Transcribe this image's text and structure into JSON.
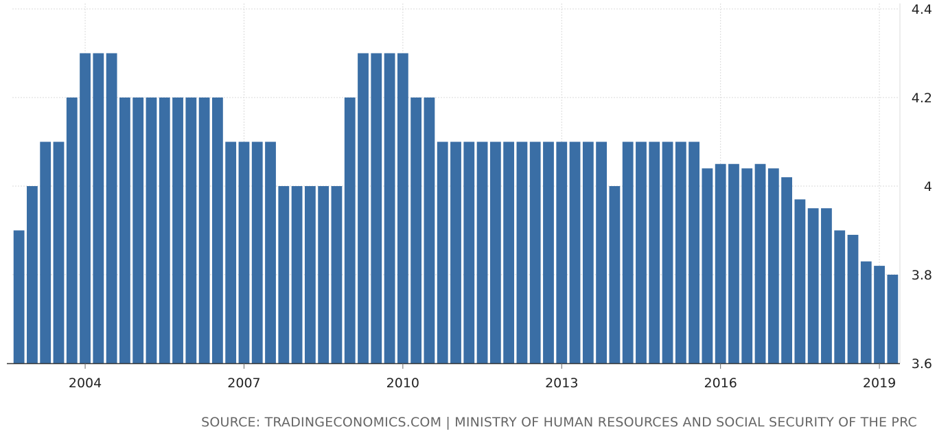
{
  "chart_data": {
    "type": "bar",
    "x_start": "2002-Q4",
    "frequency": "quarterly",
    "values": [
      3.9,
      4.0,
      4.1,
      4.1,
      4.2,
      4.3,
      4.3,
      4.3,
      4.2,
      4.2,
      4.2,
      4.2,
      4.2,
      4.2,
      4.2,
      4.2,
      4.1,
      4.1,
      4.1,
      4.1,
      4.0,
      4.0,
      4.0,
      4.0,
      4.0,
      4.2,
      4.3,
      4.3,
      4.3,
      4.3,
      4.2,
      4.2,
      4.1,
      4.1,
      4.1,
      4.1,
      4.1,
      4.1,
      4.1,
      4.1,
      4.1,
      4.1,
      4.1,
      4.1,
      4.1,
      4.0,
      4.1,
      4.1,
      4.1,
      4.1,
      4.1,
      4.1,
      4.04,
      4.05,
      4.05,
      4.04,
      4.05,
      4.04,
      4.02,
      3.97,
      3.95,
      3.95,
      3.9,
      3.89,
      3.83,
      3.82,
      3.8
    ],
    "ylim": [
      3.6,
      4.4
    ],
    "y_ticks": [
      3.6,
      3.8,
      4.0,
      4.2,
      4.4
    ],
    "y_tick_labels": [
      "3.6",
      "3.8",
      "4",
      "4.2",
      "4.4"
    ],
    "x_tick_labels": [
      "2004",
      "2007",
      "2010",
      "2013",
      "2016",
      "2019"
    ],
    "grid": true,
    "y_axis_side": "right",
    "bar_color": "#3a6ea5",
    "grid_color": "#d9d9d9",
    "title": "",
    "xlabel": "",
    "ylabel": ""
  },
  "source_text": "SOURCE: TRADINGECONOMICS.COM | MINISTRY OF HUMAN RESOURCES AND SOCIAL SECURITY OF THE PRC"
}
